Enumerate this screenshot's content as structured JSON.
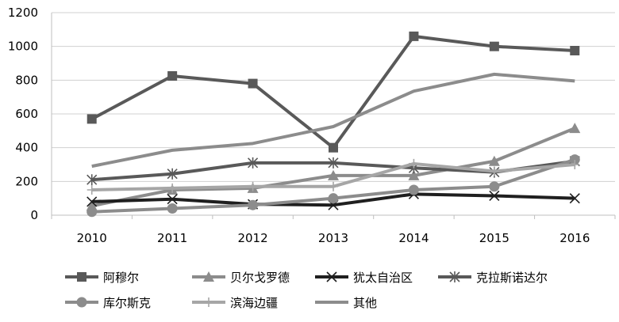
{
  "chart_data": {
    "type": "line",
    "categories": [
      "2010",
      "2011",
      "2012",
      "2013",
      "2014",
      "2015",
      "2016"
    ],
    "ylim": [
      0,
      1200
    ],
    "yticks": [
      "0",
      "200",
      "400",
      "600",
      "800",
      "1000",
      "1200"
    ],
    "grid": "horizontal",
    "legend_placement": "bottom",
    "series": [
      {
        "name": "阿穆尔",
        "marker": "square",
        "color": "#595959",
        "values": [
          570,
          825,
          780,
          400,
          1060,
          1000,
          975
        ]
      },
      {
        "name": "贝尔戈罗德",
        "marker": "triangle",
        "color": "#8c8c8c",
        "values": [
          55,
          150,
          160,
          235,
          235,
          320,
          515
        ]
      },
      {
        "name": "犹太自治区",
        "marker": "x",
        "color": "#1f1f1f",
        "values": [
          80,
          95,
          65,
          60,
          125,
          115,
          100
        ]
      },
      {
        "name": "克拉斯诺达尔",
        "marker": "asterisk",
        "color": "#595959",
        "values": [
          210,
          245,
          310,
          310,
          280,
          255,
          320
        ]
      },
      {
        "name": "库尔斯克",
        "marker": "circle",
        "color": "#8c8c8c",
        "values": [
          20,
          40,
          60,
          100,
          150,
          170,
          330
        ]
      },
      {
        "name": "滨海边疆",
        "marker": "plus",
        "color": "#a6a6a6",
        "values": [
          150,
          160,
          170,
          170,
          305,
          260,
          300
        ]
      },
      {
        "name": "其他",
        "marker": "dash",
        "color": "#8c8c8c",
        "values": [
          290,
          385,
          425,
          525,
          735,
          835,
          795
        ]
      }
    ]
  }
}
